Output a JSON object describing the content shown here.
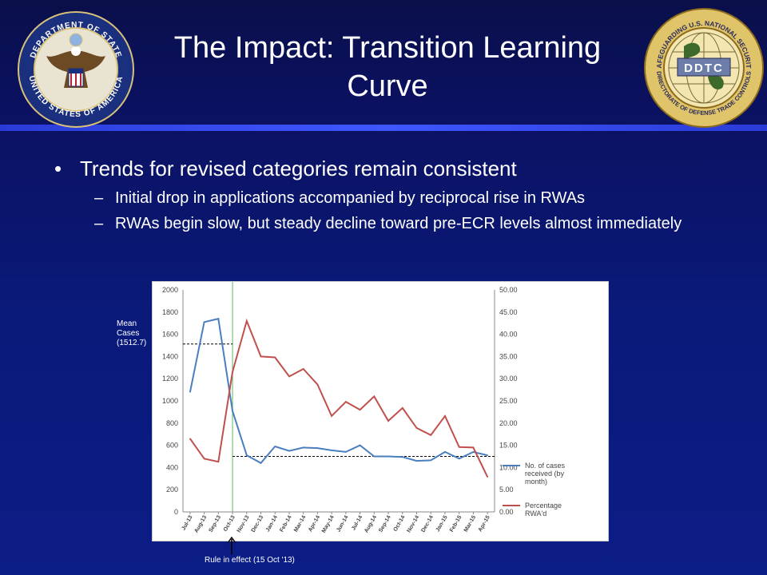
{
  "slide": {
    "title": "The Impact: Transition Learning Curve",
    "bullet_main": "Trends for revised categories remain consistent",
    "sub_bullets": [
      "Initial drop in applications accompanied by reciprocal rise in RWAs",
      "RWAs  begin slow, but steady decline toward pre-ECR levels almost immediately"
    ],
    "bullet_char": "•",
    "dash_char": "–",
    "left_seal_text": "DEPARTMENT OF STATE · UNITED STATES OF AMERICA",
    "right_seal_text": "SAFEGUARDING U.S. NATIONAL SECURITY · DIRECTORATE OF DEFENSE TRADE CONTROLS",
    "right_seal_center": "DDTC",
    "accent_color": "#3f56ff"
  },
  "chart_data": {
    "type": "line",
    "categories": [
      "Jul-13",
      "Aug-13",
      "Sep-13",
      "Oct-13",
      "Nov-13",
      "Dec-13",
      "Jan-14",
      "Feb-14",
      "Mar-14",
      "Apr-14",
      "May-14",
      "Jun-14",
      "Jul-14",
      "Aug-14",
      "Sep-14",
      "Oct-14",
      "Nov-14",
      "Dec-14",
      "Jan-15",
      "Feb-15",
      "Mar-15",
      "Apr-15"
    ],
    "series": [
      {
        "name": "No. of cases received (by month)",
        "axis": "left",
        "color": "#4a7ebf",
        "values": [
          1080,
          1710,
          1740,
          910,
          510,
          440,
          590,
          550,
          580,
          575,
          555,
          540,
          600,
          500,
          500,
          495,
          460,
          465,
          540,
          480,
          540,
          510
        ]
      },
      {
        "name": "Percentage RWA'd",
        "axis": "right",
        "color": "#c0504d",
        "values": [
          16.5,
          12.0,
          11.3,
          31.5,
          43.0,
          35.0,
          34.8,
          30.5,
          32.2,
          28.7,
          21.6,
          24.8,
          23.0,
          26.0,
          20.5,
          23.4,
          18.9,
          17.3,
          21.6,
          14.6,
          14.5,
          7.9
        ]
      }
    ],
    "y_left": {
      "min": 0,
      "max": 2000,
      "ticks": [
        0,
        200,
        400,
        600,
        800,
        1000,
        1200,
        1400,
        1600,
        1800,
        2000
      ]
    },
    "y_right": {
      "min": 0,
      "max": 50,
      "ticks": [
        "0.00",
        "5.00",
        "10.00",
        "15.00",
        "20.00",
        "25.00",
        "30.00",
        "35.00",
        "40.00",
        "45.00",
        "50.00"
      ]
    },
    "mean_cases_label": "Mean Cases (1512.7)",
    "mean_cases_value": 1512.7,
    "post_mean_value": 500,
    "rule_label": "Rule in effect (15 Oct '13)",
    "rule_index": 3,
    "legend_position": "right",
    "grid": false
  }
}
